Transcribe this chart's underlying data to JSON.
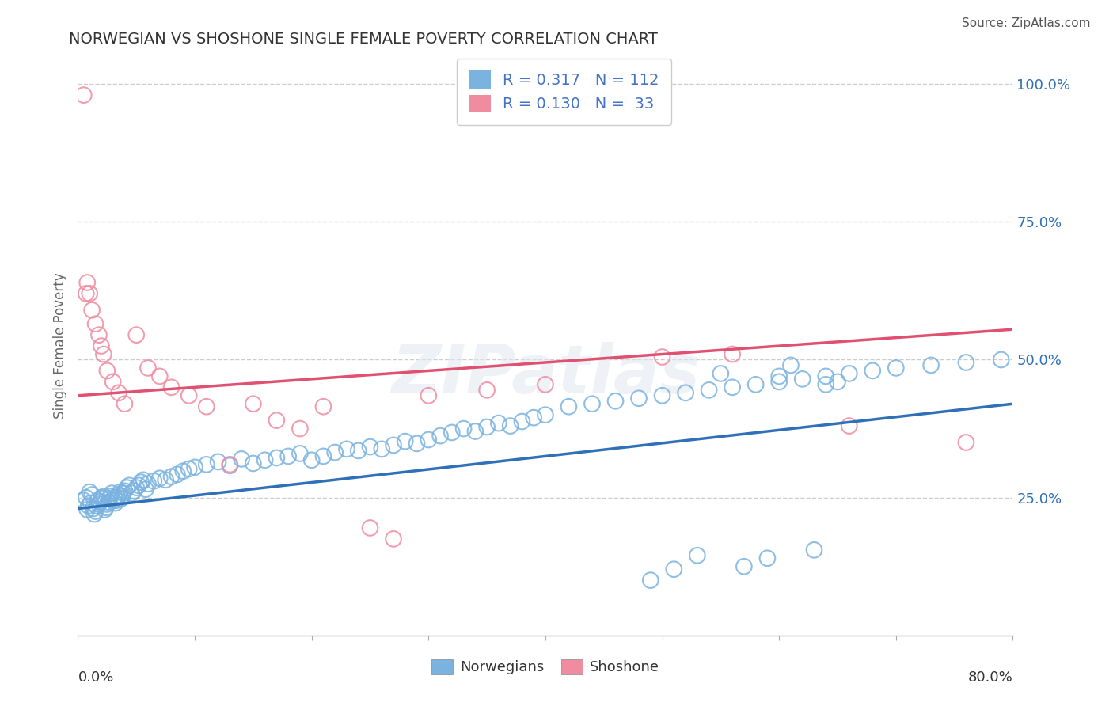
{
  "title": "NORWEGIAN VS SHOSHONE SINGLE FEMALE POVERTY CORRELATION CHART",
  "source": "Source: ZipAtlas.com",
  "ylabel": "Single Female Poverty",
  "xlim": [
    0.0,
    0.8
  ],
  "ylim": [
    0.0,
    1.05
  ],
  "yticks": [
    0.25,
    0.5,
    0.75,
    1.0
  ],
  "ytick_labels": [
    "25.0%",
    "50.0%",
    "75.0%",
    "100.0%"
  ],
  "watermark": "ZIPatlas",
  "norwegians_color": "#7bb3e0",
  "shoshone_color": "#f08ca0",
  "trendline_norwegian_color": "#3070b8",
  "trendline_shoshone_color": "#e05070",
  "background_color": "#ffffff",
  "grid_color": "#cccccc",
  "title_color": "#333333",
  "nor_trend_start": 0.23,
  "nor_trend_end": 0.42,
  "sho_trend_start": 0.435,
  "sho_trend_end": 0.555,
  "nor_x": [
    0.005,
    0.007,
    0.008,
    0.009,
    0.01,
    0.011,
    0.012,
    0.013,
    0.014,
    0.015,
    0.016,
    0.017,
    0.018,
    0.019,
    0.02,
    0.021,
    0.022,
    0.023,
    0.024,
    0.025,
    0.026,
    0.027,
    0.028,
    0.029,
    0.03,
    0.031,
    0.032,
    0.033,
    0.034,
    0.035,
    0.036,
    0.037,
    0.038,
    0.039,
    0.04,
    0.042,
    0.044,
    0.046,
    0.048,
    0.05,
    0.052,
    0.054,
    0.056,
    0.058,
    0.06,
    0.065,
    0.07,
    0.075,
    0.08,
    0.085,
    0.09,
    0.095,
    0.1,
    0.11,
    0.12,
    0.13,
    0.14,
    0.15,
    0.16,
    0.17,
    0.18,
    0.19,
    0.2,
    0.21,
    0.22,
    0.23,
    0.24,
    0.25,
    0.26,
    0.27,
    0.28,
    0.29,
    0.3,
    0.31,
    0.32,
    0.33,
    0.34,
    0.35,
    0.36,
    0.37,
    0.38,
    0.39,
    0.4,
    0.42,
    0.44,
    0.46,
    0.48,
    0.5,
    0.52,
    0.54,
    0.56,
    0.58,
    0.6,
    0.62,
    0.64,
    0.66,
    0.68,
    0.7,
    0.73,
    0.76,
    0.79,
    0.6,
    0.64,
    0.49,
    0.51,
    0.53,
    0.55,
    0.57,
    0.59,
    0.61,
    0.63,
    0.65
  ],
  "nor_y": [
    0.245,
    0.25,
    0.228,
    0.235,
    0.26,
    0.24,
    0.255,
    0.23,
    0.22,
    0.225,
    0.235,
    0.245,
    0.238,
    0.242,
    0.25,
    0.248,
    0.252,
    0.228,
    0.232,
    0.238,
    0.242,
    0.248,
    0.252,
    0.258,
    0.245,
    0.25,
    0.24,
    0.245,
    0.25,
    0.255,
    0.26,
    0.248,
    0.252,
    0.258,
    0.262,
    0.268,
    0.272,
    0.258,
    0.262,
    0.268,
    0.272,
    0.278,
    0.282,
    0.265,
    0.275,
    0.28,
    0.285,
    0.282,
    0.288,
    0.292,
    0.298,
    0.302,
    0.305,
    0.31,
    0.315,
    0.308,
    0.32,
    0.312,
    0.318,
    0.322,
    0.325,
    0.33,
    0.318,
    0.325,
    0.332,
    0.338,
    0.335,
    0.342,
    0.338,
    0.345,
    0.352,
    0.348,
    0.355,
    0.362,
    0.368,
    0.375,
    0.37,
    0.378,
    0.385,
    0.38,
    0.388,
    0.395,
    0.4,
    0.415,
    0.42,
    0.425,
    0.43,
    0.435,
    0.44,
    0.445,
    0.45,
    0.455,
    0.46,
    0.465,
    0.47,
    0.475,
    0.48,
    0.485,
    0.49,
    0.495,
    0.5,
    0.47,
    0.455,
    0.1,
    0.12,
    0.145,
    0.475,
    0.125,
    0.14,
    0.49,
    0.155,
    0.46
  ],
  "sho_x": [
    0.005,
    0.007,
    0.008,
    0.01,
    0.012,
    0.015,
    0.018,
    0.02,
    0.022,
    0.025,
    0.03,
    0.035,
    0.04,
    0.05,
    0.06,
    0.07,
    0.08,
    0.095,
    0.11,
    0.13,
    0.15,
    0.17,
    0.19,
    0.21,
    0.25,
    0.27,
    0.3,
    0.35,
    0.4,
    0.5,
    0.56,
    0.66,
    0.76
  ],
  "sho_y": [
    0.98,
    0.62,
    0.64,
    0.62,
    0.59,
    0.565,
    0.545,
    0.525,
    0.51,
    0.48,
    0.46,
    0.44,
    0.42,
    0.545,
    0.485,
    0.47,
    0.45,
    0.435,
    0.415,
    0.31,
    0.42,
    0.39,
    0.375,
    0.415,
    0.195,
    0.175,
    0.435,
    0.445,
    0.455,
    0.505,
    0.51,
    0.38,
    0.35
  ]
}
